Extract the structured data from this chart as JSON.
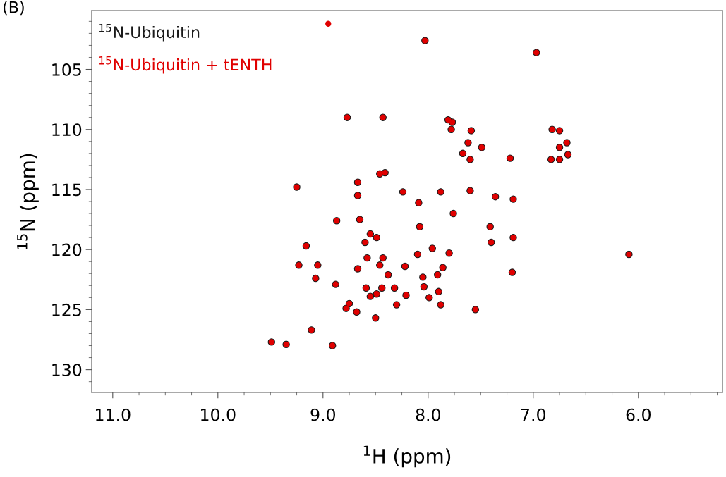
{
  "chart_data": {
    "type": "scatter",
    "annotations": [
      "(B)"
    ],
    "xlabel": "$^{1}$H (ppm)",
    "ylabel": "$^{15}$N (ppm)",
    "xlim": [
      11.2,
      5.2
    ],
    "ylim": [
      131.9,
      100.1
    ],
    "xticks": [
      {
        "value": 11,
        "label": "11.0"
      },
      {
        "value": 10,
        "label": "10.0"
      },
      {
        "value": 9,
        "label": "9.0"
      },
      {
        "value": 8,
        "label": "8.0"
      },
      {
        "value": 7,
        "label": "7.0"
      },
      {
        "value": 6,
        "label": "6.0"
      },
      {
        "value": 10.75,
        "label": null
      },
      {
        "value": 10.5,
        "label": null
      },
      {
        "value": 10.25,
        "label": null
      },
      {
        "value": 9.75,
        "label": null
      },
      {
        "value": 9.5,
        "label": null
      },
      {
        "value": 9.25,
        "label": null
      },
      {
        "value": 8.75,
        "label": null
      },
      {
        "value": 8.5,
        "label": null
      },
      {
        "value": 8.25,
        "label": null
      },
      {
        "value": 7.75,
        "label": null
      },
      {
        "value": 7.5,
        "label": null
      },
      {
        "value": 7.25,
        "label": null
      },
      {
        "value": 6.75,
        "label": null
      },
      {
        "value": 6.5,
        "label": null
      },
      {
        "value": 6.25,
        "label": null
      },
      {
        "value": 5.75,
        "label": null
      },
      {
        "value": 5.5,
        "label": null
      },
      {
        "value": 5.25,
        "label": null
      }
    ],
    "yticks": [
      105,
      110,
      115,
      120,
      125,
      130,
      {
        "value": 101,
        "label": null
      },
      {
        "value": 102,
        "label": null
      },
      {
        "value": 103,
        "label": null
      },
      {
        "value": 104,
        "label": null
      },
      {
        "value": 106,
        "label": null
      },
      {
        "value": 107,
        "label": null
      },
      {
        "value": 108,
        "label": null
      },
      {
        "value": 109,
        "label": null
      },
      {
        "value": 111,
        "label": null
      },
      {
        "value": 112,
        "label": null
      },
      {
        "value": 113,
        "label": null
      },
      {
        "value": 114,
        "label": null
      },
      {
        "value": 116,
        "label": null
      },
      {
        "value": 117,
        "label": null
      },
      {
        "value": 118,
        "label": null
      },
      {
        "value": 119,
        "label": null
      },
      {
        "value": 121,
        "label": null
      },
      {
        "value": 122,
        "label": null
      },
      {
        "value": 123,
        "label": null
      },
      {
        "value": 124,
        "label": null
      },
      {
        "value": 126,
        "label": null
      },
      {
        "value": 127,
        "label": null
      },
      {
        "value": 128,
        "label": null
      },
      {
        "value": 129,
        "label": null
      },
      {
        "value": 131,
        "label": null
      }
    ],
    "legend": "top left",
    "marker": "circle",
    "grid": false,
    "series": [
      {
        "name": "$^{15}$N-Ubiquitin",
        "color": "#1a1a1a",
        "x": [
          8.03,
          6.97,
          8.77,
          8.43,
          7.81,
          7.77,
          7.78,
          7.59,
          7.62,
          7.49,
          7.67,
          7.6,
          7.22,
          6.82,
          6.75,
          6.68,
          6.75,
          6.67,
          6.83,
          6.75,
          9.25,
          8.67,
          8.67,
          8.46,
          8.41,
          8.24,
          8.09,
          7.88,
          7.6,
          7.76,
          8.08,
          8.87,
          8.65,
          7.36,
          7.19,
          7.41,
          7.4,
          7.19,
          7.2,
          6.09,
          8.55,
          8.49,
          8.6,
          9.16,
          7.96,
          7.8,
          8.1,
          8.58,
          8.43,
          9.23,
          9.05,
          8.67,
          8.46,
          8.22,
          7.86,
          8.38,
          8.05,
          7.91,
          9.07,
          8.04,
          8.88,
          8.59,
          8.44,
          8.32,
          8.21,
          7.9,
          8.55,
          8.49,
          7.99,
          7.88,
          8.3,
          8.75,
          8.78,
          8.68,
          8.5,
          7.55,
          9.11,
          9.49,
          9.35,
          8.91
        ],
        "values": [
          102.6,
          103.6,
          109.0,
          109.0,
          109.2,
          109.4,
          110.0,
          110.1,
          111.1,
          111.5,
          112.0,
          112.5,
          112.4,
          110.0,
          110.1,
          111.1,
          111.5,
          112.1,
          112.5,
          112.5,
          114.8,
          114.4,
          115.5,
          113.7,
          113.6,
          115.2,
          116.1,
          115.2,
          115.1,
          117.0,
          118.1,
          117.6,
          117.5,
          115.6,
          115.8,
          118.1,
          119.4,
          119.0,
          121.9,
          120.4,
          118.7,
          119.0,
          119.4,
          119.7,
          119.9,
          120.3,
          120.4,
          120.7,
          120.7,
          121.3,
          121.3,
          121.6,
          121.3,
          121.4,
          121.5,
          122.1,
          122.3,
          122.1,
          122.4,
          123.1,
          122.9,
          123.2,
          123.2,
          123.2,
          123.8,
          123.5,
          123.9,
          123.7,
          124.0,
          124.6,
          124.6,
          124.5,
          124.9,
          125.2,
          125.7,
          125.0,
          126.7,
          127.7,
          127.9,
          128.0
        ]
      },
      {
        "name": "$^{15}$N-Ubiquitin + tENTH",
        "color": "#e00000",
        "x": [
          8.95,
          8.03,
          6.97,
          8.77,
          8.43,
          7.81,
          7.77,
          7.78,
          7.59,
          7.62,
          7.49,
          7.67,
          7.6,
          7.22,
          6.82,
          6.75,
          6.68,
          6.75,
          6.67,
          6.83,
          6.75,
          9.25,
          8.67,
          8.67,
          8.46,
          8.41,
          8.24,
          8.09,
          7.88,
          7.6,
          7.76,
          8.08,
          8.87,
          8.65,
          7.36,
          7.19,
          7.41,
          7.4,
          7.19,
          7.2,
          6.09,
          8.55,
          8.49,
          8.6,
          9.16,
          7.96,
          7.8,
          8.1,
          8.58,
          8.43,
          9.23,
          9.05,
          8.67,
          8.46,
          8.22,
          7.86,
          8.38,
          8.05,
          7.91,
          9.07,
          8.04,
          8.88,
          8.59,
          8.44,
          8.32,
          8.21,
          7.9,
          8.55,
          8.49,
          7.99,
          7.88,
          8.3,
          8.75,
          8.78,
          8.68,
          8.5,
          7.55,
          9.11,
          9.49,
          9.35,
          8.91
        ],
        "values": [
          101.2,
          102.6,
          103.6,
          109.0,
          109.0,
          109.2,
          109.4,
          110.0,
          110.1,
          111.1,
          111.5,
          112.0,
          112.5,
          112.4,
          110.0,
          110.1,
          111.1,
          111.5,
          112.1,
          112.5,
          112.5,
          114.8,
          114.4,
          115.5,
          113.7,
          113.6,
          115.2,
          116.1,
          115.2,
          115.1,
          117.0,
          118.1,
          117.6,
          117.5,
          115.6,
          115.8,
          118.1,
          119.4,
          119.0,
          121.9,
          120.4,
          118.7,
          119.0,
          119.4,
          119.7,
          119.9,
          120.3,
          120.4,
          120.7,
          120.7,
          121.3,
          121.3,
          121.6,
          121.3,
          121.4,
          121.5,
          122.1,
          122.3,
          122.1,
          122.4,
          123.1,
          122.9,
          123.2,
          123.2,
          123.2,
          123.8,
          123.5,
          123.9,
          123.7,
          124.0,
          124.6,
          124.6,
          124.5,
          124.9,
          125.2,
          125.7,
          125.0,
          126.7,
          127.7,
          127.9,
          128.0
        ]
      }
    ]
  }
}
